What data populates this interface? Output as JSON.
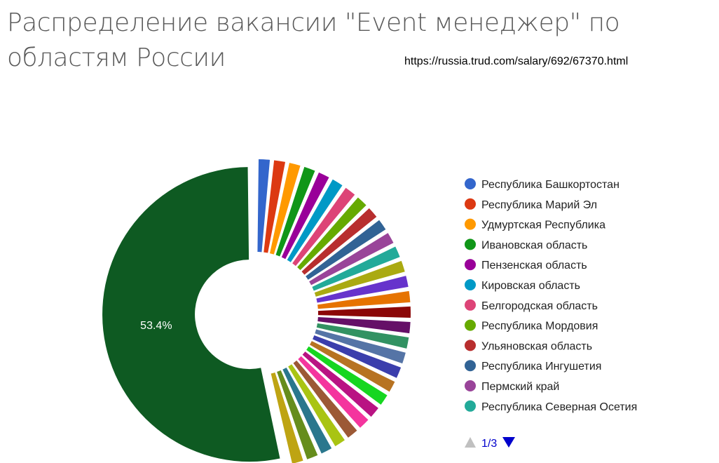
{
  "header": {
    "title": "Распределение вакансии \"Event менеджер\" по областям России",
    "source_url": "https://russia.trud.com/salary/692/67370.html"
  },
  "chart_data": {
    "type": "pie",
    "donut": true,
    "legend_position": "right",
    "pager": {
      "current": 1,
      "total": 3,
      "label": "1/3"
    },
    "largest_slice_label": "53.4%",
    "slices": [
      {
        "name": "",
        "value": 53.4,
        "color": "#0e5a22",
        "label": "53.4%"
      },
      {
        "name": "Республика Башкортостан",
        "value": 1.6,
        "color": "#3366cc"
      },
      {
        "name": "Республика Марий Эл",
        "value": 1.6,
        "color": "#dc3912"
      },
      {
        "name": "Удмуртская Республика",
        "value": 1.6,
        "color": "#ff9900"
      },
      {
        "name": "Ивановская область",
        "value": 1.6,
        "color": "#109618"
      },
      {
        "name": "Пензенская область",
        "value": 1.6,
        "color": "#990099"
      },
      {
        "name": "Кировская область",
        "value": 1.6,
        "color": "#0099c6"
      },
      {
        "name": "Белгородская область",
        "value": 1.6,
        "color": "#dd4477"
      },
      {
        "name": "Республика Мордовия",
        "value": 1.6,
        "color": "#66aa00"
      },
      {
        "name": "Ульяновская область",
        "value": 1.6,
        "color": "#b82e2e"
      },
      {
        "name": "Республика Ингушетия",
        "value": 1.6,
        "color": "#316395"
      },
      {
        "name": "Пермский край",
        "value": 1.6,
        "color": "#994499"
      },
      {
        "name": "Республика Северная Осетия",
        "value": 1.6,
        "color": "#22aa99"
      },
      {
        "name": "",
        "value": 1.6,
        "color": "#aaaa11"
      },
      {
        "name": "",
        "value": 1.6,
        "color": "#6633cc"
      },
      {
        "name": "",
        "value": 1.6,
        "color": "#e67300"
      },
      {
        "name": "",
        "value": 1.6,
        "color": "#8b0707"
      },
      {
        "name": "",
        "value": 1.6,
        "color": "#651067"
      },
      {
        "name": "",
        "value": 1.6,
        "color": "#329262"
      },
      {
        "name": "",
        "value": 1.6,
        "color": "#5574a6"
      },
      {
        "name": "",
        "value": 1.6,
        "color": "#3b3eac"
      },
      {
        "name": "",
        "value": 1.6,
        "color": "#b77322"
      },
      {
        "name": "",
        "value": 1.6,
        "color": "#16d620"
      },
      {
        "name": "",
        "value": 1.6,
        "color": "#b91383"
      },
      {
        "name": "",
        "value": 1.6,
        "color": "#f4359e"
      },
      {
        "name": "",
        "value": 1.6,
        "color": "#9c5935"
      },
      {
        "name": "",
        "value": 1.6,
        "color": "#a9c413"
      },
      {
        "name": "",
        "value": 1.6,
        "color": "#2a778d"
      },
      {
        "name": "",
        "value": 1.6,
        "color": "#668d1c"
      },
      {
        "name": "",
        "value": 1.6,
        "color": "#bea413"
      }
    ]
  }
}
